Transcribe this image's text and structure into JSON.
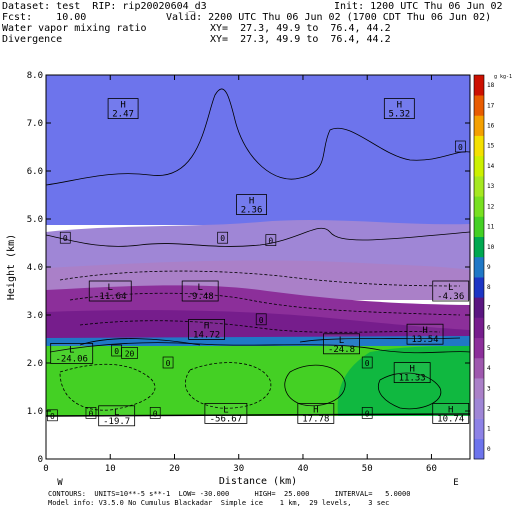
{
  "header": {
    "dataset": "Dataset: test  RIP: rip20020604_d3",
    "init": "Init: 1200 UTC Thu 06 Jun 02",
    "fcst": "Fcst:    10.00",
    "valid": "Valid: 2200 UTC Thu 06 Jun 02 (1700 CDT Thu 06 Jun 02)",
    "field1": "Water vapor mixing ratio",
    "xy1": "XY=  27.3, 49.9 to  76.4, 44.2",
    "field2": "Divergence",
    "xy2": "XY=  27.3, 49.9 to  76.4, 44.2"
  },
  "chart_data": {
    "type": "cross-section",
    "xlabel": "Distance (km)",
    "ylabel": "Height (km)",
    "xlim": [
      0,
      66
    ],
    "ylim": [
      0,
      8
    ],
    "xticks": [
      0,
      10,
      20,
      30,
      40,
      50,
      60
    ],
    "yticks": [
      "0",
      "1.0",
      "2.0",
      "3.0",
      "4.0",
      "5.0",
      "6.0",
      "7.0",
      "8.0"
    ],
    "end_labels": {
      "left": "W",
      "right": "E"
    },
    "colorbar": {
      "unit": "g kg-1",
      "labels": [
        "0",
        "1",
        "2",
        "3",
        "4",
        "5",
        "6",
        "7",
        "8",
        "9",
        "10",
        "11",
        "12",
        "13",
        "14",
        "15",
        "16",
        "17",
        "18"
      ],
      "colors": [
        "#6d74ec",
        "#8d82e6",
        "#9f86d6",
        "#aa80c8",
        "#9e58ae",
        "#8c2f9a",
        "#761d8c",
        "#5a1680",
        "#1c35c4",
        "#2078c6",
        "#00a850",
        "#44d024",
        "#78e020",
        "#a6e820",
        "#ccf000",
        "#f4e000",
        "#f4a000",
        "#e85c00",
        "#cc1000"
      ]
    },
    "regions": [
      {
        "name": "dry-upper",
        "value": 0
      },
      {
        "name": "mid-lavender",
        "value": 1
      },
      {
        "name": "low-purple",
        "value": 3
      },
      {
        "name": "moist-green",
        "value": 10
      },
      {
        "name": "moist-dark-green",
        "value": 9
      }
    ],
    "extrema": [
      {
        "type": "H",
        "value": "2.47",
        "x": 12,
        "y": 7.3
      },
      {
        "type": "H",
        "value": "5.32",
        "x": 55,
        "y": 7.3
      },
      {
        "type": "H",
        "value": "2.36",
        "x": 32,
        "y": 5.3
      },
      {
        "type": "L",
        "value": "-11.64",
        "x": 10,
        "y": 3.5
      },
      {
        "type": "L",
        "value": "-9.48",
        "x": 24,
        "y": 3.5
      },
      {
        "type": "L",
        "value": "-4.36",
        "x": 63,
        "y": 3.5
      },
      {
        "type": "H",
        "value": "14.72",
        "x": 25,
        "y": 2.7
      },
      {
        "type": "L",
        "value": "-24.06",
        "x": 4,
        "y": 2.2
      },
      {
        "type": "L",
        "value": "-24.8",
        "x": 46,
        "y": 2.4
      },
      {
        "type": "H",
        "value": "13.54",
        "x": 59,
        "y": 2.6
      },
      {
        "type": "H",
        "value": "11.33",
        "x": 57,
        "y": 1.8
      },
      {
        "type": "L",
        "value": "-19.7",
        "x": 11,
        "y": 0.9
      },
      {
        "type": "L",
        "value": "-56.67",
        "x": 28,
        "y": 0.95
      },
      {
        "type": "H",
        "value": "17.78",
        "x": 42,
        "y": 0.95
      },
      {
        "type": "H",
        "value": "10.74",
        "x": 63,
        "y": 0.95
      }
    ],
    "contour_labels": [
      {
        "value": "0",
        "x": 64.5,
        "y": 6.5
      },
      {
        "value": "0",
        "x": 3,
        "y": 4.6
      },
      {
        "value": "0",
        "x": 27.5,
        "y": 4.6
      },
      {
        "value": "0",
        "x": 35,
        "y": 4.55
      },
      {
        "value": "0",
        "x": 33.5,
        "y": 2.9
      },
      {
        "value": "0",
        "x": 11,
        "y": 2.25
      },
      {
        "value": "20",
        "x": 13,
        "y": 2.2
      },
      {
        "value": "0",
        "x": 19,
        "y": 2.0
      },
      {
        "value": "0",
        "x": 50,
        "y": 2.0
      },
      {
        "value": "0",
        "x": 7,
        "y": 0.95
      },
      {
        "value": "0",
        "x": 17,
        "y": 0.95
      },
      {
        "value": "0",
        "x": 50,
        "y": 0.95
      },
      {
        "value": "0",
        "x": 1,
        "y": 0.9
      }
    ]
  },
  "footer": {
    "contours": "CONTOURS:  UNITS=10**-5 s**-1  LOW= -30.000      HIGH=  25.000      INTERVAL=   5.0000",
    "model": "Model info: V3.5.0 No Cumulus Blackadar  Simple ice    1 km,  29 levels,    3 sec"
  }
}
